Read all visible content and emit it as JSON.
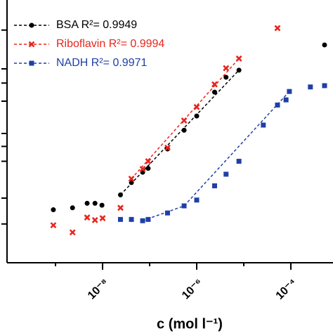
{
  "chart_data": {
    "type": "scatter",
    "x_label": "c (mol l⁻¹)",
    "x_log": true,
    "xlim": [
      1e-10,
      0.001
    ],
    "xticks": [
      {
        "value": 1e-08,
        "label": "10⁻⁸"
      },
      {
        "value": 1e-06,
        "label": "10⁻⁶"
      },
      {
        "value": 0.0001,
        "label": "10⁻⁴"
      }
    ],
    "xminor": [
      1e-09,
      1e-07,
      1e-05
    ],
    "ylim": [
      0,
      4
    ],
    "yticks": [
      0.6,
      1,
      1.57,
      1.8,
      2,
      2.5,
      2.78,
      3,
      3.6
    ],
    "legend": "upper left",
    "series": [
      {
        "name": "BSA R²= 0.9949",
        "color": "#000000",
        "marker": "circle",
        "x": [
          9e-10,
          2.3e-09,
          4.7e-09,
          6.9e-09,
          9.7e-09,
          2.4e-08,
          4.1e-08,
          7.1e-08,
          9.3e-08,
          2.4e-07,
          5.4e-07,
          1e-06,
          2.4e-06,
          4.2e-06,
          7.9e-06,
          0.00052
        ],
        "values": [
          0.82,
          0.85,
          0.92,
          0.92,
          0.89,
          1.05,
          1.24,
          1.4,
          1.46,
          1.76,
          2.05,
          2.27,
          2.64,
          2.87,
          2.98,
          3.37
        ],
        "fit_x": [
          2.4e-08,
          7.9e-06
        ],
        "fit_values": [
          1.05,
          2.98
        ]
      },
      {
        "name": "Riboflavin R²= 0.9994",
        "color": "#e8251d",
        "marker": "x",
        "x": [
          9e-10,
          2.3e-09,
          4.7e-09,
          6.9e-09,
          1e-08,
          2.4e-08,
          4.1e-08,
          7.1e-08,
          9.3e-08,
          2.4e-07,
          5.4e-07,
          1e-06,
          2.4e-06,
          4.2e-06,
          7.9e-06,
          5.2e-05
        ],
        "values": [
          0.58,
          0.47,
          0.7,
          0.66,
          0.69,
          0.85,
          1.3,
          1.45,
          1.57,
          1.78,
          2.2,
          2.41,
          2.76,
          3.01,
          3.16,
          3.63
        ],
        "fit_x": [
          4.1e-08,
          7.9e-06
        ],
        "fit_values": [
          1.3,
          3.16
        ]
      },
      {
        "name": "NADH R²= 0.9971",
        "color": "#1f3fa8",
        "marker": "square",
        "x": [
          2.4e-08,
          4.1e-08,
          7.1e-08,
          9.3e-08,
          2.4e-07,
          5.4e-07,
          1e-06,
          2.4e-06,
          4.2e-06,
          7.9e-06,
          2.6e-05,
          5.2e-05,
          7.9e-05,
          9.3e-05,
          0.00026,
          0.00052
        ],
        "values": [
          0.67,
          0.67,
          0.65,
          0.67,
          0.77,
          0.88,
          0.97,
          1.19,
          1.37,
          1.57,
          2.13,
          2.44,
          2.52,
          2.65,
          2.72,
          2.74
        ],
        "fit_x": [
          7.1e-08,
          5.4e-07,
          9.3e-05
        ],
        "fit_values": [
          0.65,
          0.88,
          2.65
        ]
      }
    ]
  }
}
